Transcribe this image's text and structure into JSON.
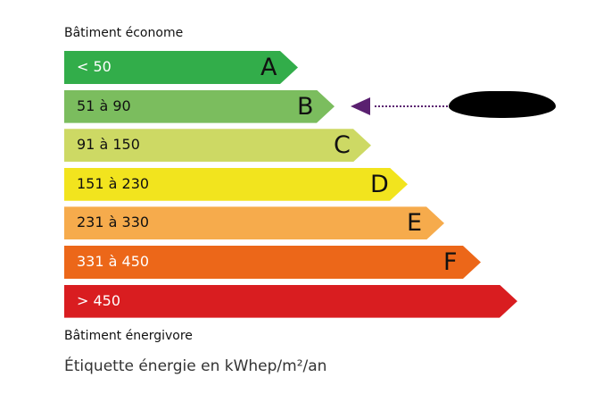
{
  "top_label": "Bâtiment économe",
  "bottom_label": "Bâtiment énergivore",
  "footer": "Étiquette énergie en kWhep/m²/an",
  "classes": [
    {
      "letter": "A",
      "range": "< 50",
      "color": "#32ad4a",
      "text_color": "#ffffff"
    },
    {
      "letter": "B",
      "range": "51 à 90",
      "color": "#7bbd5e",
      "text_color": "#111111"
    },
    {
      "letter": "C",
      "range": "91 à 150",
      "color": "#cdd964",
      "text_color": "#111111"
    },
    {
      "letter": "D",
      "range": "151 à 230",
      "color": "#f2e41e",
      "text_color": "#111111"
    },
    {
      "letter": "E",
      "range": "231 à 330",
      "color": "#f6ab4c",
      "text_color": "#111111"
    },
    {
      "letter": "F",
      "range": "331 à 450",
      "color": "#ec6719",
      "text_color": "#ffffff"
    },
    {
      "letter": "",
      "range": "> 450",
      "color": "#d91d20",
      "text_color": "#ffffff"
    }
  ],
  "indicator": {
    "class": "B",
    "color": "#5a2070",
    "value_redacted": true
  }
}
